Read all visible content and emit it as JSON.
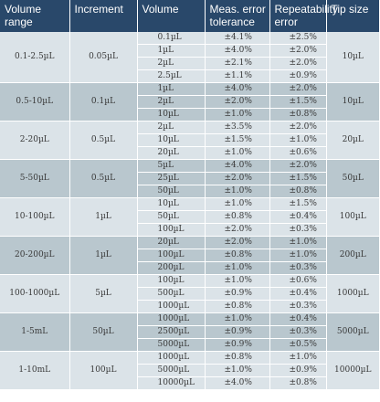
{
  "headers": [
    "Volume range",
    "Increment",
    "Volume",
    "Meas. error tolerance",
    "Repeatability error",
    "Tip size"
  ],
  "groups": [
    {
      "range": "0.1-2.5µL",
      "increment": "0.05µL",
      "tip": "10µL",
      "rows": [
        {
          "volume": "0.1µL",
          "error": "±4.1%",
          "repeat": "±2.5%"
        },
        {
          "volume": "1µL",
          "error": "±4.0%",
          "repeat": "±2.0%"
        },
        {
          "volume": "2µL",
          "error": "±2.1%",
          "repeat": "±2.0%"
        },
        {
          "volume": "2.5µL",
          "error": "±1.1%",
          "repeat": "±0.9%"
        }
      ]
    },
    {
      "range": "0.5-10µL",
      "increment": "0.1µL",
      "tip": "10µL",
      "rows": [
        {
          "volume": "1µL",
          "error": "±4.0%",
          "repeat": "±2.0%"
        },
        {
          "volume": "2µL",
          "error": "±2.0%",
          "repeat": "±1.5%"
        },
        {
          "volume": "10µL",
          "error": "±1.0%",
          "repeat": "±0.8%"
        }
      ]
    },
    {
      "range": "2-20µL",
      "increment": "0.5µL",
      "tip": "20µL",
      "rows": [
        {
          "volume": "2µL",
          "error": "±3.5%",
          "repeat": "±2.0%"
        },
        {
          "volume": "10µL",
          "error": "±1.5%",
          "repeat": "±1.0%"
        },
        {
          "volume": "20µL",
          "error": "±1.0%",
          "repeat": "±0.6%"
        }
      ]
    },
    {
      "range": "5-50µL",
      "increment": "0.5µL",
      "tip": "50µL",
      "rows": [
        {
          "volume": "5µL",
          "error": "±4.0%",
          "repeat": "±2.0%"
        },
        {
          "volume": "25µL",
          "error": "±2.0%",
          "repeat": "±1.5%"
        },
        {
          "volume": "50µL",
          "error": "±1.0%",
          "repeat": "±0.8%"
        }
      ]
    },
    {
      "range": "10-100µL",
      "increment": "1µL",
      "tip": "100µL",
      "rows": [
        {
          "volume": "10µL",
          "error": "±1.0%",
          "repeat": "±1.5%"
        },
        {
          "volume": "50µL",
          "error": "±0.8%",
          "repeat": "±0.4%"
        },
        {
          "volume": "100µL",
          "error": "±2.0%",
          "repeat": "±0.3%"
        }
      ]
    },
    {
      "range": "20-200µL",
      "increment": "1µL",
      "tip": "200µL",
      "rows": [
        {
          "volume": "20µL",
          "error": "±2.0%",
          "repeat": "±1.0%"
        },
        {
          "volume": "100µL",
          "error": "±0.8%",
          "repeat": "±1.0%"
        },
        {
          "volume": "200µL",
          "error": "±1.0%",
          "repeat": "±0.3%"
        }
      ]
    },
    {
      "range": "100-1000µL",
      "increment": "5µL",
      "tip": "1000µL",
      "rows": [
        {
          "volume": "100µL",
          "error": "±1.0%",
          "repeat": "±0.6%"
        },
        {
          "volume": "500µL",
          "error": "±0.9%",
          "repeat": "±0.4%"
        },
        {
          "volume": "1000µL",
          "error": "±0.8%",
          "repeat": "±0.3%"
        }
      ]
    },
    {
      "range": "1-5mL",
      "increment": "50µL",
      "tip": "5000µL",
      "rows": [
        {
          "volume": "1000µL",
          "error": "±1.0%",
          "repeat": "±0.4%"
        },
        {
          "volume": "2500µL",
          "error": "±0.9%",
          "repeat": "±0.3%"
        },
        {
          "volume": "5000µL",
          "error": "±0.9%",
          "repeat": "±0.5%"
        }
      ]
    },
    {
      "range": "1-10mL",
      "increment": "100µL",
      "tip": "10000µL",
      "rows": [
        {
          "volume": "1000µL",
          "error": "±0.8%",
          "repeat": "±1.0%"
        },
        {
          "volume": "5000µL",
          "error": "±1.0%",
          "repeat": "±0.9%"
        },
        {
          "volume": "10000µL",
          "error": "±4.0%",
          "repeat": "±0.8%"
        }
      ]
    }
  ]
}
